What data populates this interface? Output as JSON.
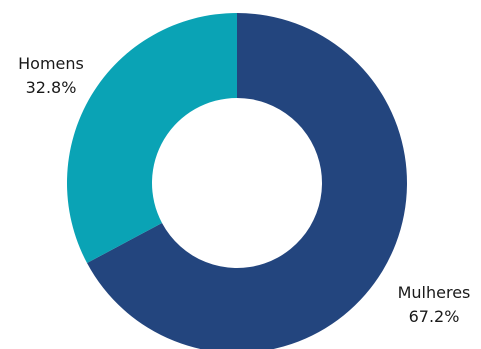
{
  "chart_data": {
    "type": "pie",
    "donut": true,
    "title": "",
    "categories": [
      "Mulheres",
      "Homens"
    ],
    "values": [
      67.2,
      32.8
    ],
    "value_labels": [
      "67.2%",
      "32.8%"
    ],
    "colors": [
      "#23457e",
      "#0aa3b5"
    ],
    "start_angle_deg": 0,
    "direction": "clockwise",
    "legend": "none"
  }
}
